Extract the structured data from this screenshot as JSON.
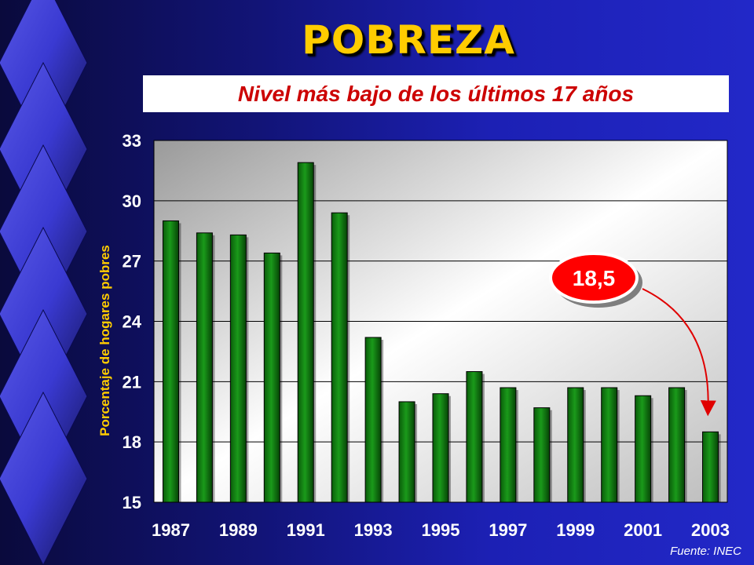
{
  "title": "POBREZA",
  "subtitle": "Nivel más bajo de los últimos 17 años",
  "source": "Fuente: INEC",
  "callout": {
    "text": "18,5",
    "target_year": "2003"
  },
  "colors": {
    "title": "#ffcc00",
    "subtitle": "#cc0000",
    "bar": "#0c7a0c",
    "bar_dark": "#053d05",
    "callout_fill": "#ff0000",
    "arrow": "#e00000"
  },
  "chart_data": {
    "type": "bar",
    "categories": [
      "1987",
      "1988",
      "1989",
      "1990",
      "1991",
      "1992",
      "1993",
      "1994",
      "1995",
      "1996",
      "1997",
      "1998",
      "1999",
      "2000",
      "2001",
      "2002",
      "2003"
    ],
    "tick_labels_x": [
      "1987",
      "1989",
      "1991",
      "1993",
      "1995",
      "1997",
      "1999",
      "2001",
      "2003"
    ],
    "values": [
      29.0,
      28.4,
      28.3,
      27.4,
      31.9,
      29.4,
      23.2,
      20.0,
      20.4,
      21.5,
      20.7,
      19.7,
      20.7,
      20.7,
      20.3,
      20.7,
      18.5
    ],
    "ylim": [
      15,
      33
    ],
    "yticks": [
      "15",
      "18",
      "21",
      "24",
      "27",
      "30",
      "33"
    ],
    "ylabel": "Porcentaje de hogares pobres",
    "grid": true,
    "legend": "none"
  }
}
